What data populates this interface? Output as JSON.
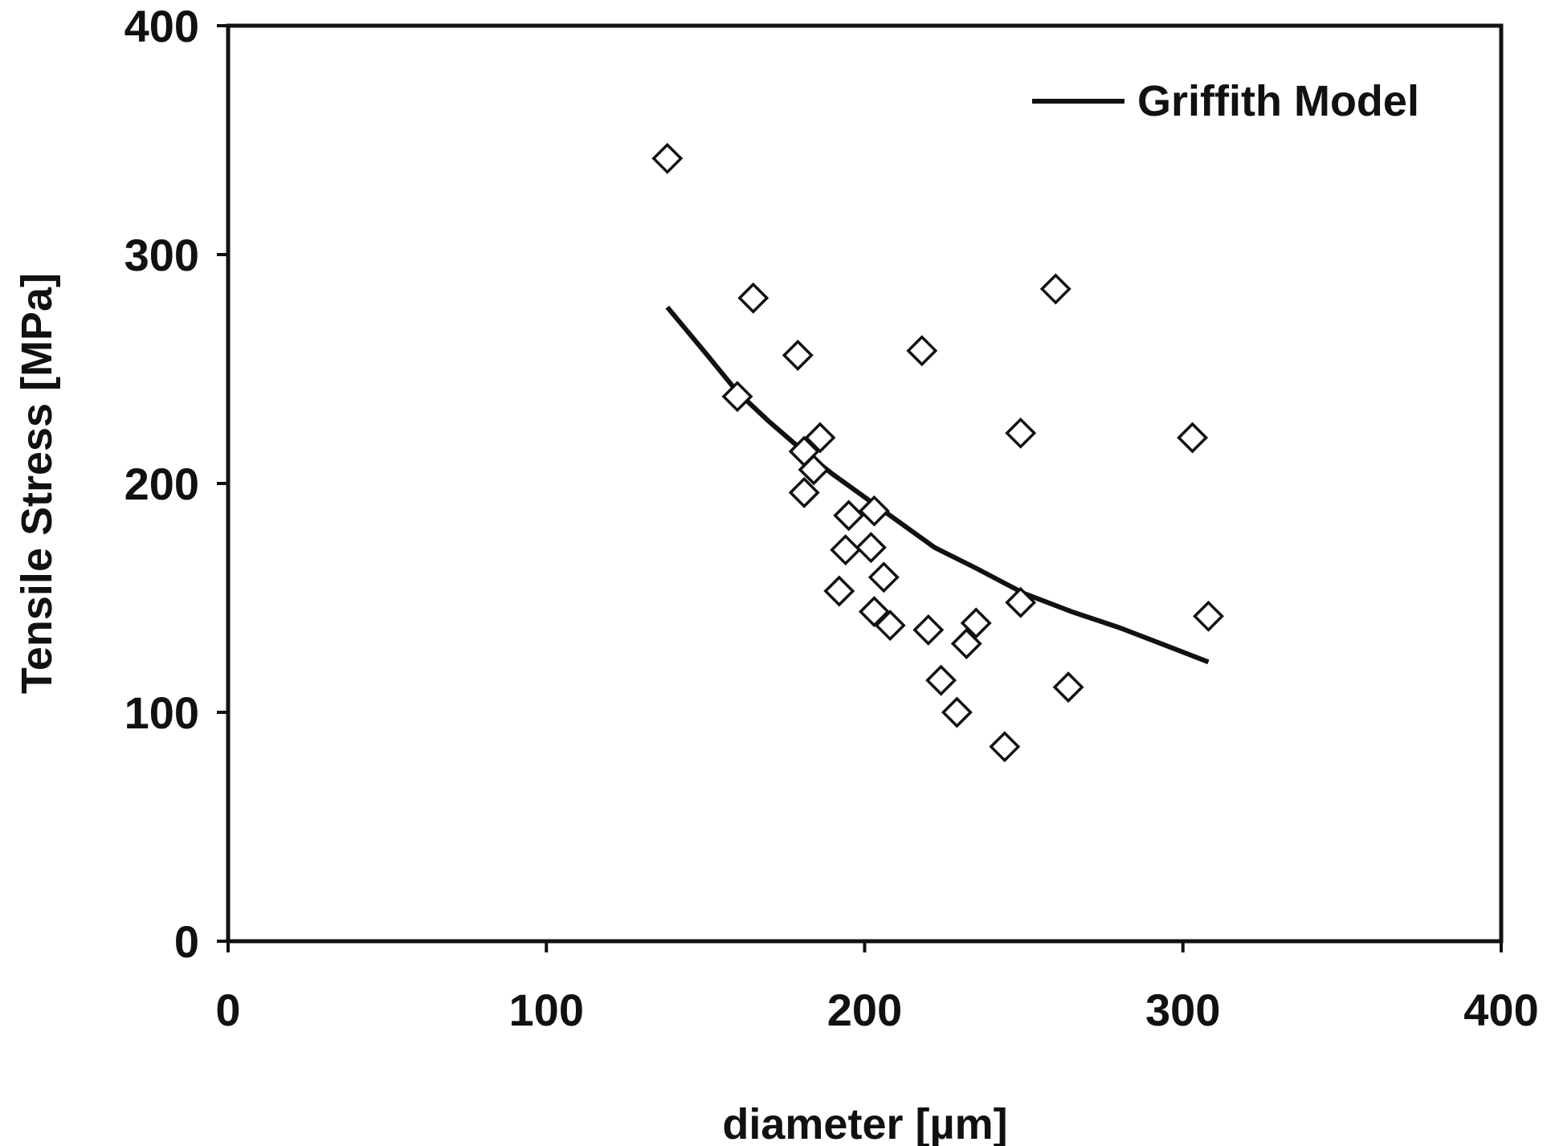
{
  "chart_data": {
    "type": "scatter",
    "xlabel": "diameter [µm]",
    "ylabel": "Tensile Stress [MPa]",
    "xlim": [
      0,
      400
    ],
    "ylim": [
      0,
      400
    ],
    "x_ticks": [
      "0",
      "100",
      "200",
      "300",
      "400"
    ],
    "y_ticks": [
      "0",
      "100",
      "200",
      "300",
      "400"
    ],
    "grid": false,
    "legend_position": "top-right",
    "series": [
      {
        "marker": "open-diamond",
        "points": [
          [
            138,
            342
          ],
          [
            165,
            281
          ],
          [
            179,
            256
          ],
          [
            160,
            238
          ],
          [
            186,
            220
          ],
          [
            181,
            214
          ],
          [
            184,
            206
          ],
          [
            181,
            196
          ],
          [
            195,
            186
          ],
          [
            203,
            188
          ],
          [
            194,
            171
          ],
          [
            202,
            172
          ],
          [
            206,
            159
          ],
          [
            192,
            153
          ],
          [
            203,
            144
          ],
          [
            208,
            138
          ],
          [
            220,
            136
          ],
          [
            235,
            139
          ],
          [
            232,
            130
          ],
          [
            224,
            114
          ],
          [
            229,
            100
          ],
          [
            244,
            85
          ],
          [
            249,
            148
          ],
          [
            264,
            111
          ],
          [
            218,
            258
          ],
          [
            260,
            285
          ],
          [
            249,
            222
          ],
          [
            303,
            220
          ],
          [
            308,
            142
          ]
        ]
      },
      {
        "name": "Griffith Model",
        "line": true,
        "points": [
          [
            138,
            277
          ],
          [
            150,
            257
          ],
          [
            160,
            240
          ],
          [
            170,
            227
          ],
          [
            180,
            215
          ],
          [
            190,
            204
          ],
          [
            200,
            194
          ],
          [
            210,
            184
          ],
          [
            222,
            172
          ],
          [
            235,
            163
          ],
          [
            250,
            152
          ],
          [
            265,
            144
          ],
          [
            280,
            137
          ],
          [
            295,
            129
          ],
          [
            308,
            122
          ]
        ]
      }
    ]
  }
}
